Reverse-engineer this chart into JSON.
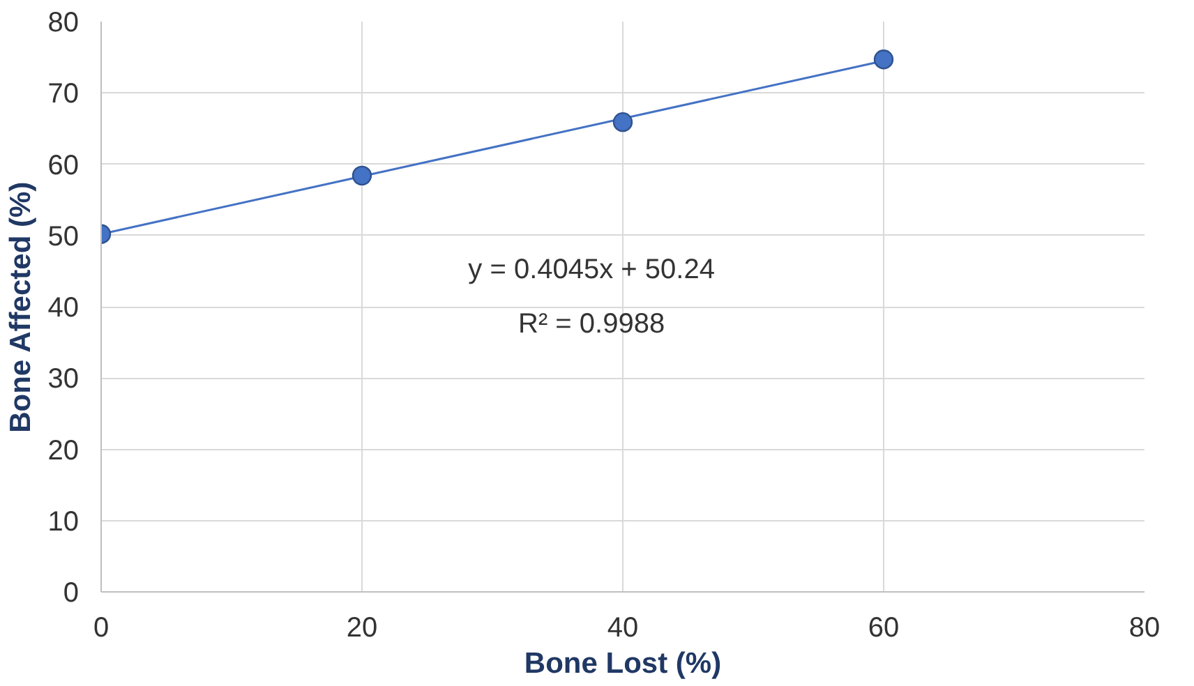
{
  "chart_data": {
    "type": "scatter",
    "xlabel": "Bone Lost (%)",
    "ylabel": "Bone Affected (%)",
    "series": [
      {
        "color": "#4472c4",
        "x": [
          0,
          20,
          40,
          60
        ],
        "values": [
          50.2,
          58.4,
          65.9,
          74.7
        ],
        "marker": "circle"
      },
      {
        "type": "line",
        "color": "#4472c4",
        "x": [
          0,
          60
        ],
        "values": [
          50.2,
          74.5
        ],
        "line_style": "solid"
      }
    ],
    "xlim": [
      0,
      80
    ],
    "ylim": [
      0,
      80
    ],
    "xticks": [
      0,
      20,
      40,
      60,
      80
    ],
    "yticks": [
      0,
      10,
      20,
      30,
      40,
      50,
      60,
      70,
      80
    ],
    "grid": true,
    "annotations": [
      "y = 0.4045x + 50.24",
      "R² = 0.9988"
    ]
  }
}
